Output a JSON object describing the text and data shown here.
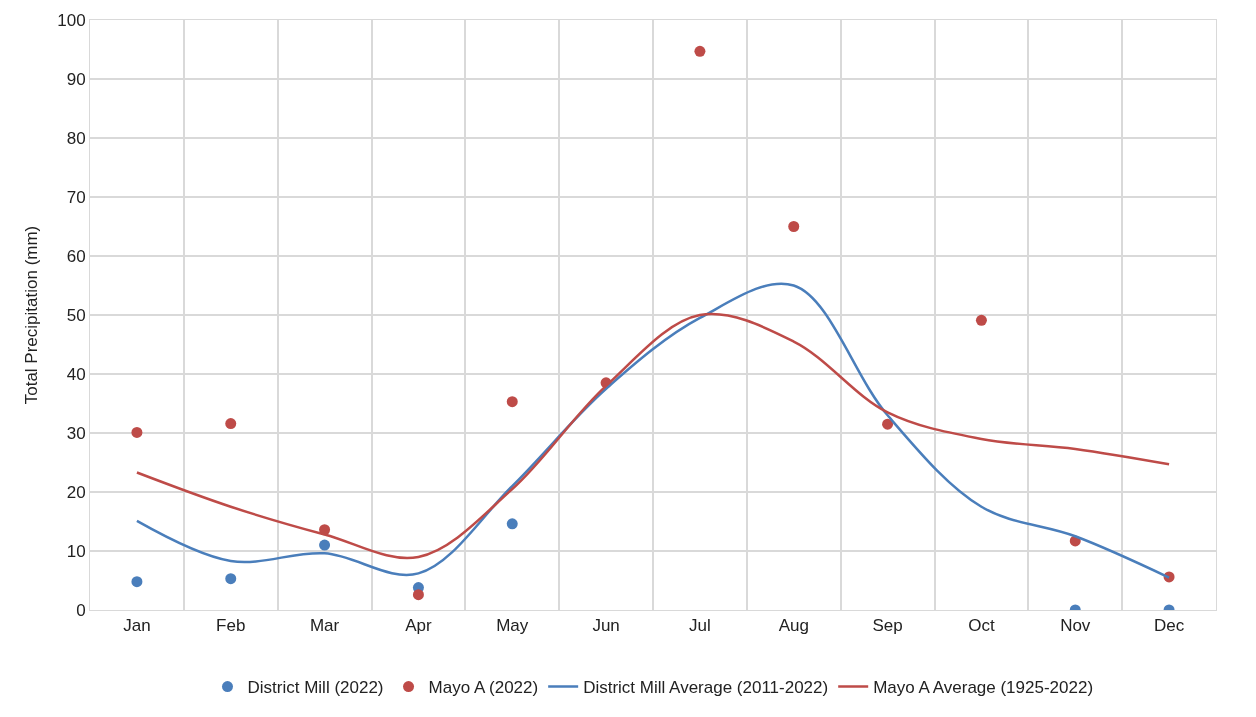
{
  "chart_data": {
    "type": "scatter",
    "ylabel": "Total Precipitation (mm)",
    "categories": [
      "Jan",
      "Feb",
      "Mar",
      "Apr",
      "May",
      "Jun",
      "Jul",
      "Aug",
      "Sep",
      "Oct",
      "Nov",
      "Dec"
    ],
    "series": [
      {
        "name": "District Mill (2022)",
        "color": "#4a7ebb",
        "marker": "circle",
        "values": [
          4.8,
          5.3,
          11,
          3.8,
          14.6,
          null,
          null,
          null,
          null,
          null,
          0,
          0
        ]
      },
      {
        "name": "Mayo A (2022)",
        "color": "#be4b48",
        "marker": "circle",
        "values": [
          30.1,
          31.6,
          13.6,
          2.6,
          35.3,
          38.5,
          94.7,
          65,
          31.5,
          49.1,
          11.7,
          5.6
        ]
      },
      {
        "name": "District Mill Average (2011-2022)",
        "type": "line",
        "color": "#4a7ebb",
        "marker": "none",
        "values": [
          15.1,
          8.3,
          9.6,
          6.2,
          21,
          37.5,
          49.5,
          55,
          33,
          17.5,
          12.5,
          5.5
        ]
      },
      {
        "name": "Mayo A Average (1925-2022)",
        "type": "line",
        "color": "#be4b48",
        "marker": "none",
        "values": [
          23.3,
          17.5,
          12.8,
          9,
          20.5,
          38,
          50,
          45.5,
          33.5,
          29,
          27.3,
          24.7
        ]
      }
    ],
    "ylim": [
      0,
      100
    ],
    "yticks": [
      0,
      10,
      20,
      30,
      40,
      50,
      60,
      70,
      80,
      90,
      100
    ],
    "grid": true,
    "legend": "bottom"
  }
}
